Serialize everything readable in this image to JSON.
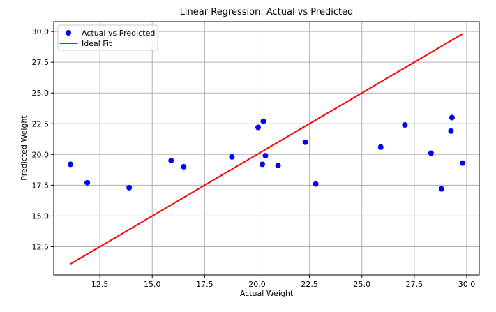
{
  "chart_data": {
    "type": "scatter",
    "title": "Linear Regression: Actual vs Predicted",
    "xlabel": "Actual Weight",
    "ylabel": "Predicted Weight",
    "xlim": [
      10.3,
      30.6
    ],
    "ylim": [
      10.2,
      30.8
    ],
    "x_ticks": [
      "12.5",
      "15.0",
      "17.5",
      "20.0",
      "22.5",
      "25.0",
      "27.5",
      "30.0"
    ],
    "y_ticks": [
      "12.5",
      "15.0",
      "17.5",
      "20.0",
      "22.5",
      "25.0",
      "27.5",
      "30.0"
    ],
    "grid": true,
    "legend": "upper-left",
    "series": [
      {
        "name": "Actual vs Predicted",
        "kind": "scatter",
        "color": "#0000ff",
        "x": [
          11.1,
          11.9,
          13.9,
          15.9,
          16.5,
          18.8,
          20.05,
          20.3,
          20.25,
          20.4,
          21.0,
          22.3,
          22.8,
          25.9,
          27.05,
          28.3,
          28.8,
          29.25,
          29.3,
          29.8
        ],
        "y": [
          19.2,
          17.7,
          17.3,
          19.5,
          19.0,
          19.8,
          22.2,
          22.7,
          19.2,
          19.9,
          19.1,
          21.0,
          17.6,
          20.6,
          22.4,
          20.1,
          17.2,
          21.9,
          23.0,
          19.3
        ]
      },
      {
        "name": "Ideal Fit",
        "kind": "line",
        "color": "#ff0000",
        "x": [
          11.1,
          29.8
        ],
        "y": [
          11.1,
          29.8
        ]
      }
    ]
  }
}
